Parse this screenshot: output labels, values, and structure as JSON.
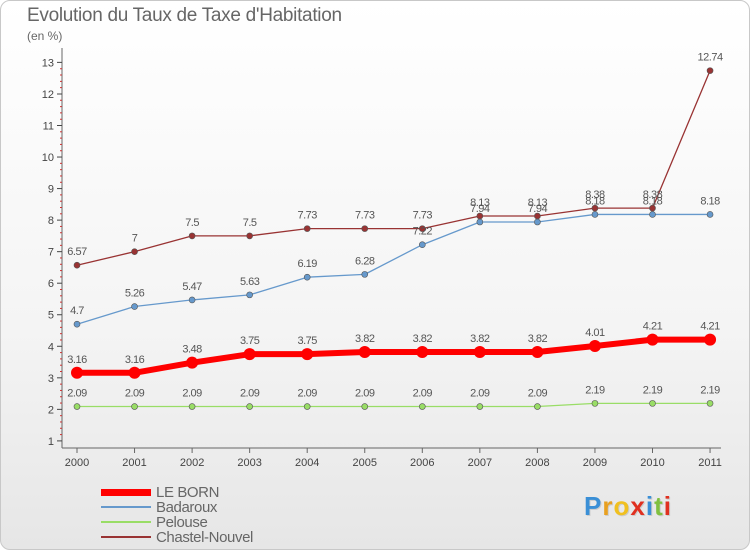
{
  "title": "Evolution du Taux de Taxe d'Habitation",
  "subtitle": "(en %)",
  "logo": {
    "letters": [
      "P",
      "r",
      "o",
      "x",
      "i",
      "t",
      "i"
    ],
    "colors": [
      "#3a8fd6",
      "#e8a020",
      "#f0c020",
      "#e03020",
      "#3a8fd6",
      "#80c040",
      "#e03020"
    ]
  },
  "chart_data": {
    "type": "line",
    "x": [
      "2000",
      "2001",
      "2002",
      "2003",
      "2004",
      "2005",
      "2006",
      "2007",
      "2008",
      "2009",
      "2010",
      "2011"
    ],
    "ylim": [
      0.8,
      13.3
    ],
    "yticks": [
      "1",
      "2",
      "3",
      "4",
      "5",
      "6",
      "7",
      "8",
      "9",
      "10",
      "11",
      "12",
      "13"
    ],
    "grid": false,
    "legend_position": "bottom-left",
    "series": [
      {
        "name": "LE BORN",
        "color": "#ff0000",
        "values": [
          3.16,
          3.16,
          3.48,
          3.75,
          3.75,
          3.82,
          3.82,
          3.82,
          3.82,
          4.01,
          4.21,
          4.21
        ],
        "labels": [
          "3.16",
          "3.16",
          "3.48",
          "3.75",
          "3.75",
          "3.82",
          "3.82",
          "3.82",
          "3.82",
          "4.01",
          "4.21",
          "4.21"
        ]
      },
      {
        "name": "Badaroux",
        "color": "#6699cc",
        "values": [
          4.7,
          5.26,
          5.47,
          5.63,
          6.19,
          6.28,
          7.22,
          7.94,
          7.94,
          8.18,
          8.18,
          8.18
        ],
        "labels": [
          "4.7",
          "5.26",
          "5.47",
          "5.63",
          "6.19",
          "6.28",
          "7.22",
          "7.94",
          "7.94",
          "8.18",
          "8.18",
          "8.18"
        ]
      },
      {
        "name": "Pelouse",
        "color": "#99dd66",
        "values": [
          2.09,
          2.09,
          2.09,
          2.09,
          2.09,
          2.09,
          2.09,
          2.09,
          2.09,
          2.19,
          2.19,
          2.19
        ],
        "labels": [
          "2.09",
          "2.09",
          "2.09",
          "2.09",
          "2.09",
          "2.09",
          "2.09",
          "2.09",
          "2.09",
          "2.19",
          "2.19",
          "2.19"
        ]
      },
      {
        "name": "Chastel-Nouvel",
        "color": "#993333",
        "values": [
          6.57,
          7,
          7.5,
          7.5,
          7.73,
          7.73,
          7.73,
          8.13,
          8.13,
          8.38,
          8.38,
          12.74
        ],
        "labels": [
          "6.57",
          "7",
          "7.5",
          "7.5",
          "7.73",
          "7.73",
          "7.73",
          "8.13",
          "8.13",
          "8.38",
          "8.38",
          "12.74"
        ]
      }
    ]
  }
}
